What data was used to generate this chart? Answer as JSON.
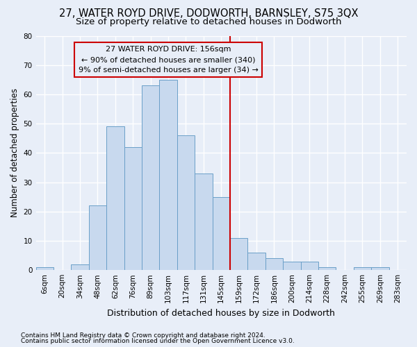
{
  "title1": "27, WATER ROYD DRIVE, DODWORTH, BARNSLEY, S75 3QX",
  "title2": "Size of property relative to detached houses in Dodworth",
  "xlabel": "Distribution of detached houses by size in Dodworth",
  "ylabel": "Number of detached properties",
  "footnote1": "Contains HM Land Registry data © Crown copyright and database right 2024.",
  "footnote2": "Contains public sector information licensed under the Open Government Licence v3.0.",
  "categories": [
    "6sqm",
    "20sqm",
    "34sqm",
    "48sqm",
    "62sqm",
    "76sqm",
    "89sqm",
    "103sqm",
    "117sqm",
    "131sqm",
    "145sqm",
    "159sqm",
    "172sqm",
    "186sqm",
    "200sqm",
    "214sqm",
    "228sqm",
    "242sqm",
    "255sqm",
    "269sqm",
    "283sqm"
  ],
  "values": [
    1,
    0,
    2,
    22,
    49,
    42,
    63,
    65,
    46,
    33,
    25,
    11,
    6,
    4,
    3,
    3,
    1,
    0,
    1,
    1,
    0
  ],
  "bar_color": "#c8d9ee",
  "bar_edge_color": "#6a9fc8",
  "vline_color": "#cc0000",
  "vline_idx": 11,
  "annotation_line1": "27 WATER ROYD DRIVE: 156sqm",
  "annotation_line2": "← 90% of detached houses are smaller (340)",
  "annotation_line3": "9% of semi-detached houses are larger (34) →",
  "annotation_box_color": "#cc0000",
  "ylim": [
    0,
    80
  ],
  "yticks": [
    0,
    10,
    20,
    30,
    40,
    50,
    60,
    70,
    80
  ],
  "bg_color": "#e8eef8",
  "grid_color": "#ffffff",
  "title1_fontsize": 10.5,
  "title2_fontsize": 9.5,
  "xlabel_fontsize": 9,
  "ylabel_fontsize": 8.5,
  "tick_fontsize": 7.5,
  "annot_fontsize": 8,
  "footnote_fontsize": 6.5
}
